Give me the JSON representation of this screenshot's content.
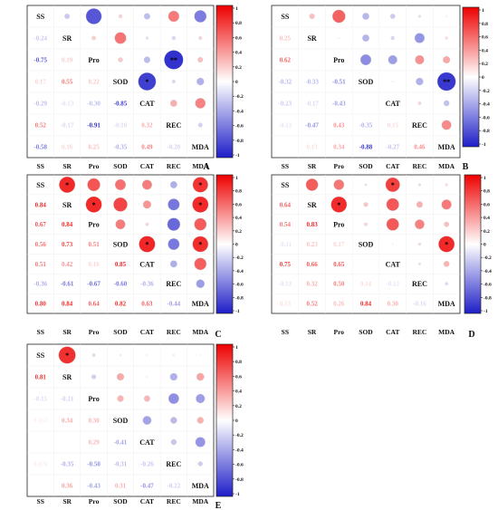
{
  "variables": [
    "SS",
    "SR",
    "Pro",
    "SOD",
    "CAT",
    "REC",
    "MDA"
  ],
  "colorbar_ticks": [
    "1",
    "0.8",
    "0.6",
    "0.4",
    "0.2",
    "0",
    "-0.2",
    "-0.4",
    "-0.6",
    "-0.8",
    "-1"
  ],
  "colors": {
    "positive": "#ee0000",
    "negative": "#1e1ec8",
    "neutral": "#ffffff"
  },
  "chart_data": [
    {
      "type": "heatmap",
      "panel_label": "A",
      "lower_labels": [
        [
          "-0.24"
        ],
        [
          "-0.75",
          "0.19"
        ],
        [
          "0.17",
          "0.55",
          "0.22"
        ],
        [
          "-0.29",
          "-0.13",
          "-0.30",
          "-0.85"
        ],
        [
          "0.52",
          "-0.17",
          "-0.91",
          "-0.16",
          "0.32"
        ],
        [
          "-0.58",
          "0.16",
          "0.25",
          "-0.35",
          "0.49",
          "-0.20"
        ]
      ],
      "lower_values": [
        [
          -0.24
        ],
        [
          -0.75,
          0.19
        ],
        [
          0.17,
          0.55,
          0.22
        ],
        [
          -0.29,
          -0.13,
          -0.3,
          -0.85
        ],
        [
          0.52,
          -0.17,
          -0.91,
          -0.16,
          0.32
        ],
        [
          -0.58,
          0.16,
          0.25,
          -0.35,
          0.49,
          -0.2
        ]
      ],
      "significance": [
        [
          4,
          3,
          "*"
        ],
        [
          5,
          2,
          "**"
        ]
      ],
      "ylim": [
        -1,
        1
      ]
    },
    {
      "type": "heatmap",
      "panel_label": "B",
      "lower_labels": [
        [
          "0.25"
        ],
        [
          "0.62",
          "0.004"
        ],
        [
          "-0.32",
          "-0.33",
          "-0.51"
        ],
        [
          "-0.23",
          "-0.17",
          "-0.43",
          "0.001"
        ],
        [
          "-0.12",
          "-0.47",
          "0.43",
          "-0.35",
          "0.15"
        ],
        [
          "0.000",
          "0.13",
          "0.34",
          "-0.88",
          "-0.27",
          "0.46"
        ]
      ],
      "lower_values": [
        [
          0.25
        ],
        [
          0.62,
          0.004
        ],
        [
          -0.32,
          -0.33,
          -0.51
        ],
        [
          -0.23,
          -0.17,
          -0.43,
          0.001
        ],
        [
          -0.12,
          -0.47,
          0.43,
          -0.35,
          0.15
        ],
        [
          0.0,
          0.13,
          0.34,
          -0.88,
          -0.27,
          0.46
        ]
      ],
      "significance": [
        [
          6,
          3,
          "**"
        ]
      ],
      "ylim": [
        -1,
        1
      ]
    },
    {
      "type": "heatmap",
      "panel_label": "C",
      "lower_labels": [
        [
          "0.84"
        ],
        [
          "0.67",
          "0.84"
        ],
        [
          "0.56",
          "0.73",
          "0.51"
        ],
        [
          "0.51",
          "0.42",
          "0.16",
          "0.85"
        ],
        [
          "-0.36",
          "-0.61",
          "-0.67",
          "-0.60",
          "-0.36"
        ],
        [
          "0.80",
          "0.84",
          "0.64",
          "0.82",
          "0.63",
          "-0.44"
        ]
      ],
      "lower_values": [
        [
          0.84
        ],
        [
          0.67,
          0.84
        ],
        [
          0.56,
          0.73,
          0.51
        ],
        [
          0.51,
          0.42,
          0.16,
          0.85
        ],
        [
          -0.36,
          -0.61,
          -0.67,
          -0.6,
          -0.36
        ],
        [
          0.8,
          0.84,
          0.64,
          0.82,
          0.63,
          -0.44
        ]
      ],
      "significance": [
        [
          1,
          0,
          "*"
        ],
        [
          2,
          1,
          "*"
        ],
        [
          4,
          3,
          "*"
        ],
        [
          6,
          0,
          "*"
        ],
        [
          6,
          1,
          "*"
        ],
        [
          6,
          3,
          "*"
        ]
      ],
      "ylim": [
        -1,
        1
      ]
    },
    {
      "type": "heatmap",
      "panel_label": "D",
      "lower_labels": [
        [
          "0.64"
        ],
        [
          "0.54",
          "0.83"
        ],
        [
          "-0.11",
          "0.23",
          "0.17"
        ],
        [
          "0.75",
          "0.66",
          "0.65",
          ""
        ],
        [
          "-0.13",
          "0.32",
          "0.50",
          "0.14",
          "-0.12"
        ],
        [
          "0.13",
          "0.52",
          "0.26",
          "0.84",
          "0.30",
          "-0.16"
        ]
      ],
      "lower_values": [
        [
          0.64
        ],
        [
          0.54,
          0.83
        ],
        [
          -0.11,
          0.23,
          0.17
        ],
        [
          0.75,
          0.66,
          0.65,
          0.0
        ],
        [
          -0.13,
          0.32,
          0.5,
          0.14,
          -0.12
        ],
        [
          0.13,
          0.52,
          0.26,
          0.84,
          0.3,
          -0.16
        ]
      ],
      "significance": [
        [
          4,
          0,
          "*"
        ],
        [
          2,
          1,
          "*"
        ],
        [
          6,
          3,
          "*"
        ]
      ],
      "ylim": [
        -1,
        1
      ]
    },
    {
      "type": "heatmap",
      "panel_label": "E",
      "lower_labels": [
        [
          "0.81"
        ],
        [
          "-0.15",
          "-0.21"
        ],
        [
          "0.063",
          "0.34",
          "0.30"
        ],
        [
          "0.005",
          "0.002",
          "0.29",
          "-0.41"
        ],
        [
          "0.070",
          "-0.35",
          "-0.50",
          "-0.31",
          "-0.26"
        ],
        [
          "",
          "0.36",
          "-0.43",
          "0.31",
          "-0.47",
          "-0.22"
        ]
      ],
      "lower_values": [
        [
          0.81
        ],
        [
          -0.15,
          -0.21
        ],
        [
          0.063,
          0.34,
          0.3
        ],
        [
          0.005,
          0.002,
          0.29,
          -0.41
        ],
        [
          0.07,
          -0.35,
          -0.5,
          -0.31,
          -0.26
        ],
        [
          0.0,
          0.36,
          -0.43,
          0.31,
          -0.47,
          -0.22
        ]
      ],
      "significance": [
        [
          1,
          0,
          "*"
        ]
      ],
      "ylim": [
        -1,
        1
      ]
    }
  ]
}
